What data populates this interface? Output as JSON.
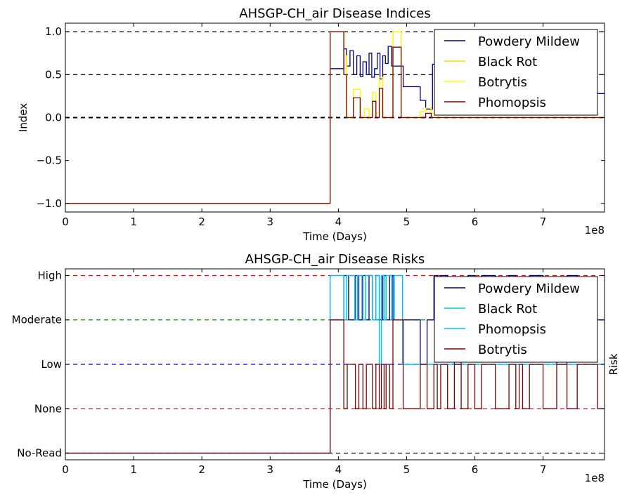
{
  "chart_data": [
    {
      "type": "line",
      "step": true,
      "title": "AHSGP-CH_air Disease Indices",
      "xlabel": "Time (Days)",
      "ylabel": "Index",
      "x_offset_text": "1e8",
      "xlim": [
        0,
        7.9
      ],
      "ylim": [
        -1.1,
        1.1
      ],
      "x_ticks": [
        0,
        1,
        2,
        3,
        4,
        5,
        6,
        7
      ],
      "x_tick_labels": [
        "0",
        "1",
        "2",
        "3",
        "4",
        "5",
        "6",
        "7"
      ],
      "y_ticks": [
        -1.0,
        -0.5,
        0.0,
        0.5,
        1.0
      ],
      "y_tick_labels": [
        "−1.0",
        "−0.5",
        "0.0",
        "0.5",
        "1.0"
      ],
      "reference_lines": [
        {
          "y": 1.0,
          "color": "#000000",
          "style": "dashed"
        },
        {
          "y": 0.5,
          "color": "#000000",
          "style": "dashed"
        },
        {
          "y": 0.0,
          "color": "#000000",
          "style": "dashed"
        }
      ],
      "legend_position": "top-right",
      "series": [
        {
          "name": "Powdery Mildew",
          "color": "#000080",
          "x": [
            0,
            3.88,
            4.08,
            4.12,
            4.17,
            4.22,
            4.27,
            4.32,
            4.36,
            4.41,
            4.45,
            4.49,
            4.53,
            4.57,
            4.61,
            4.65,
            4.69,
            4.73,
            4.78,
            4.83,
            4.95,
            5.0,
            5.05,
            5.2,
            5.28,
            5.38,
            5.44,
            5.5,
            5.56,
            5.62,
            5.7,
            7.9
          ],
          "y": [
            -1.0,
            0.57,
            0.8,
            0.6,
            0.78,
            0.5,
            0.72,
            0.48,
            0.65,
            0.5,
            0.75,
            0.47,
            0.57,
            0.75,
            0.45,
            0.72,
            0.63,
            0.83,
            0.6,
            0.6,
            0.36,
            0.36,
            0.36,
            0.2,
            0.1,
            0.62,
            0.55,
            0.15,
            0.05,
            0.1,
            0.28,
            0.29
          ]
        },
        {
          "name": "Black Rot",
          "color": "#ffd700",
          "x": [
            0,
            3.88,
            4.08,
            4.12,
            4.22,
            4.32,
            4.38,
            4.45,
            4.5,
            4.55,
            4.6,
            4.65,
            4.7,
            4.75,
            4.8,
            4.92,
            5.2,
            5.28,
            5.36,
            5.44,
            7.9
          ],
          "y": [
            -1.0,
            1.0,
            0.72,
            0.0,
            0.33,
            0.0,
            0.1,
            0.0,
            0.29,
            0.05,
            0.47,
            0.0,
            0.0,
            0.0,
            1.0,
            0.0,
            0.07,
            0.11,
            0.05,
            0.0,
            0.0
          ]
        },
        {
          "name": "Botrytis",
          "color": "#ffff00",
          "x": [
            0,
            3.88,
            4.08,
            4.12,
            4.22,
            4.32,
            4.38,
            4.45,
            4.5,
            4.55,
            4.6,
            4.65,
            4.7,
            4.75,
            4.8,
            4.92,
            5.2,
            5.28,
            5.36,
            5.44,
            7.9
          ],
          "y": [
            -1.0,
            1.0,
            0.72,
            0.0,
            0.33,
            0.0,
            0.1,
            0.0,
            0.29,
            0.05,
            0.47,
            0.0,
            0.0,
            0.0,
            1.0,
            0.0,
            0.07,
            0.11,
            0.05,
            0.0,
            0.0
          ]
        },
        {
          "name": "Phomopsis",
          "color": "#800000",
          "x": [
            0,
            3.88,
            4.08,
            4.12,
            4.22,
            4.32,
            4.38,
            4.45,
            4.5,
            4.55,
            4.6,
            4.65,
            4.7,
            4.75,
            4.8,
            4.92,
            5.2,
            5.28,
            5.36,
            5.44,
            7.9
          ],
          "y": [
            -1.0,
            1.0,
            0.5,
            0.0,
            0.23,
            0.0,
            0.0,
            0.0,
            0.19,
            0.0,
            0.34,
            0.0,
            0.0,
            0.0,
            0.82,
            0.0,
            0.0,
            0.05,
            0.0,
            0.0,
            0.0
          ]
        }
      ]
    },
    {
      "type": "line",
      "step": true,
      "title": "AHSGP-CH_air Disease Risks",
      "xlabel": "Time (Days)",
      "ylabel": "Risk",
      "x_offset_text": "1e8",
      "xlim": [
        0,
        7.9
      ],
      "ylim": [
        -0.15,
        4.15
      ],
      "x_ticks": [
        0,
        1,
        2,
        3,
        4,
        5,
        6,
        7
      ],
      "x_tick_labels": [
        "0",
        "1",
        "2",
        "3",
        "4",
        "5",
        "6",
        "7"
      ],
      "y_ticks": [
        0,
        1,
        2,
        3,
        4
      ],
      "y_tick_labels": [
        "No-Read",
        "None",
        "Low",
        "Moderate",
        "High"
      ],
      "reference_lines": [
        {
          "y": 4,
          "color": "#ff0000",
          "style": "dashed"
        },
        {
          "y": 3,
          "color": "#008000",
          "style": "dashed"
        },
        {
          "y": 2,
          "color": "#0000ff",
          "style": "dashed"
        },
        {
          "y": 1,
          "color": "#a52a2a",
          "style": "dashed"
        },
        {
          "y": 0,
          "color": "#000000",
          "style": "dashed"
        }
      ],
      "legend_position": "top-right",
      "series": [
        {
          "name": "Powdery Mildew",
          "color": "#000080",
          "x": [
            0,
            3.88,
            4.08,
            4.15,
            4.25,
            4.3,
            4.35,
            4.4,
            4.45,
            4.5,
            4.55,
            4.6,
            4.65,
            4.7,
            4.75,
            4.8,
            4.95,
            5.2,
            5.3,
            5.4,
            5.45,
            5.5,
            5.6,
            5.7,
            5.8,
            5.9,
            6.0,
            6.1,
            6.3,
            6.5,
            6.6,
            6.8,
            7.0,
            7.2,
            7.35,
            7.5,
            7.8,
            7.9
          ],
          "y": [
            0,
            3,
            4,
            3,
            4,
            3,
            4,
            3,
            4,
            3,
            4,
            3,
            4,
            3,
            4,
            3,
            3,
            2,
            3,
            4,
            3,
            4,
            3,
            2,
            3,
            4,
            3,
            4,
            3,
            4,
            3,
            4,
            3,
            2,
            4,
            3,
            3,
            3
          ]
        },
        {
          "name": "Black Rot",
          "color": "#00ced1",
          "x": [
            0,
            3.88,
            4.08,
            4.12,
            4.24,
            4.28,
            4.36,
            4.4,
            4.5,
            4.55,
            4.6,
            4.63,
            4.67,
            4.7,
            4.78,
            4.82,
            4.94,
            7.9
          ],
          "y": [
            0,
            4,
            3,
            4,
            3,
            4,
            3,
            4,
            3,
            4,
            2,
            4,
            3,
            4,
            3,
            4,
            2,
            2
          ]
        },
        {
          "name": "Phomopsis",
          "color": "#00bfff",
          "x": [
            0,
            3.88,
            4.08,
            4.12,
            4.24,
            4.28,
            4.36,
            4.4,
            4.5,
            4.55,
            4.6,
            4.63,
            4.67,
            4.7,
            4.78,
            4.82,
            4.94,
            7.9
          ],
          "y": [
            0,
            4,
            3,
            4,
            3,
            4,
            3,
            4,
            3,
            4,
            2,
            4,
            3,
            4,
            3,
            4,
            2,
            2
          ]
        },
        {
          "name": "Botrytis",
          "color": "#800000",
          "x": [
            0,
            3.88,
            4.08,
            4.13,
            4.25,
            4.3,
            4.36,
            4.41,
            4.5,
            4.55,
            4.6,
            4.63,
            4.67,
            4.7,
            4.75,
            4.8,
            4.95,
            5.2,
            5.3,
            5.4,
            5.45,
            5.5,
            5.6,
            5.7,
            5.8,
            5.9,
            6.0,
            6.1,
            6.3,
            6.5,
            6.6,
            6.65,
            6.7,
            6.8,
            7.0,
            7.2,
            7.35,
            7.5,
            7.8,
            7.9
          ],
          "y": [
            0,
            3,
            1,
            2,
            1,
            2,
            1,
            2,
            1,
            2,
            1,
            2,
            1,
            2,
            1,
            3,
            1,
            2,
            1,
            2,
            1,
            2,
            1,
            2,
            1,
            2,
            1,
            2,
            1,
            2,
            1,
            2,
            1,
            2,
            1,
            2,
            1,
            2,
            1,
            1
          ]
        }
      ]
    }
  ]
}
